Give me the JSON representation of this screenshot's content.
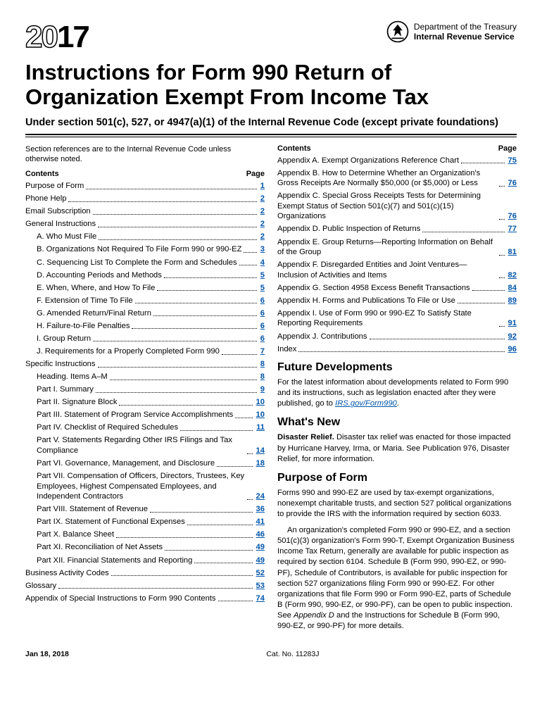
{
  "year": {
    "outline": "20",
    "solid": "17"
  },
  "dept": {
    "l1": "Department of the Treasury",
    "l2": "Internal Revenue Service"
  },
  "title": "Instructions for Form 990 Return of Organization Exempt From Income Tax",
  "subtitle": "Under section 501(c), 527, or 4947(a)(1) of the Internal Revenue Code (except private foundations)",
  "intro": "Section references are to the Internal Revenue Code unless otherwise noted.",
  "contents_label": "Contents",
  "page_label": "Page",
  "toc_left": [
    {
      "label": "Purpose of Form",
      "page": "1",
      "indent": 0
    },
    {
      "label": "Phone Help",
      "page": "2",
      "indent": 0
    },
    {
      "label": "Email Subscription",
      "page": "2",
      "indent": 0
    },
    {
      "label": "General Instructions",
      "page": "2",
      "indent": 0
    },
    {
      "label": "A. Who Must File",
      "page": "2",
      "indent": 1
    },
    {
      "label": "B. Organizations Not Required To File Form 990 or 990-EZ",
      "page": "3",
      "indent": 1
    },
    {
      "label": "C. Sequencing List To Complete the Form and Schedules",
      "page": "4",
      "indent": 1
    },
    {
      "label": "D. Accounting Periods and Methods",
      "page": "5",
      "indent": 1
    },
    {
      "label": "E. When, Where, and How To File",
      "page": "5",
      "indent": 1
    },
    {
      "label": "F. Extension of Time To File",
      "page": "6",
      "indent": 1
    },
    {
      "label": "G. Amended Return/Final Return",
      "page": "6",
      "indent": 1
    },
    {
      "label": "H. Failure-to-File Penalties",
      "page": "6",
      "indent": 1
    },
    {
      "label": "I. Group Return",
      "page": "6",
      "indent": 1
    },
    {
      "label": "J. Requirements for a Properly Completed Form 990",
      "page": "7",
      "indent": 1
    },
    {
      "label": "Specific Instructions",
      "page": "8",
      "indent": 0
    },
    {
      "label": "Heading. Items A–M",
      "page": "8",
      "indent": 1
    },
    {
      "label": "Part I. Summary",
      "page": "9",
      "indent": 1
    },
    {
      "label": "Part II. Signature Block",
      "page": "10",
      "indent": 1
    },
    {
      "label": "Part III. Statement of Program Service Accomplishments",
      "page": "10",
      "indent": 1
    },
    {
      "label": "Part IV. Checklist of Required Schedules",
      "page": "11",
      "indent": 1
    },
    {
      "label": "Part V. Statements Regarding Other IRS Filings and Tax Compliance",
      "page": "14",
      "indent": 1
    },
    {
      "label": "Part VI. Governance, Management, and Disclosure",
      "page": "18",
      "indent": 1
    },
    {
      "label": "Part VII. Compensation of Officers, Directors, Trustees, Key Employees, Highest Compensated Employees, and Independent Contractors",
      "page": "24",
      "indent": 1
    },
    {
      "label": "Part VIII. Statement of Revenue",
      "page": "36",
      "indent": 1
    },
    {
      "label": "Part IX. Statement of Functional Expenses",
      "page": "41",
      "indent": 1
    },
    {
      "label": "Part X. Balance Sheet",
      "page": "46",
      "indent": 1
    },
    {
      "label": "Part XI. Reconciliation of Net Assets",
      "page": "49",
      "indent": 1
    },
    {
      "label": "Part XII. Financial Statements and Reporting",
      "page": "49",
      "indent": 1
    },
    {
      "label": "Business Activity Codes",
      "page": "52",
      "indent": 0
    },
    {
      "label": "Glossary",
      "page": "53",
      "indent": 0
    },
    {
      "label": "Appendix of Special Instructions to Form 990 Contents",
      "page": "74",
      "indent": 0
    }
  ],
  "toc_right": [
    {
      "label": "Appendix A. Exempt Organizations Reference Chart",
      "page": "75",
      "indent": 0
    },
    {
      "label": "Appendix B. How to Determine Whether an Organization's Gross Receipts Are Normally $50,000 (or $5,000) or Less",
      "page": "76",
      "indent": 0
    },
    {
      "label": "Appendix C. Special Gross Receipts Tests for Determining Exempt Status of Section 501(c)(7) and 501(c)(15) Organizations",
      "page": "76",
      "indent": 0
    },
    {
      "label": "Appendix D. Public Inspection of Returns",
      "page": "77",
      "indent": 0
    },
    {
      "label": "Appendix E. Group Returns—Reporting Information on Behalf of the Group",
      "page": "81",
      "indent": 0
    },
    {
      "label": "Appendix F. Disregarded Entities and Joint Ventures—Inclusion of Activities and Items",
      "page": "82",
      "indent": 0
    },
    {
      "label": "Appendix G. Section 4958 Excess Benefit Transactions",
      "page": "84",
      "indent": 0
    },
    {
      "label": "Appendix H. Forms and Publications To File or Use",
      "page": "89",
      "indent": 0
    },
    {
      "label": "Appendix I. Use of Form 990 or 990-EZ To Satisfy State Reporting Requirements",
      "page": "91",
      "indent": 0
    },
    {
      "label": "Appendix J. Contributions",
      "page": "92",
      "indent": 0
    },
    {
      "label": "Index",
      "page": "96",
      "indent": 0
    }
  ],
  "future_h": "Future Developments",
  "future_p1": "For the latest information about developments related to Form 990 and its instructions, such as legislation enacted after they were published, go to ",
  "future_link": "IRS.gov/Form990",
  "future_p2": ".",
  "whatsnew_h": "What's New",
  "whatsnew_b": "Disaster Relief.",
  "whatsnew_p": " Disaster tax relief was enacted for those impacted by Hurricane Harvey, Irma, or Maria. See Publication 976, Disaster Relief, for more information.",
  "purpose_h": "Purpose of Form",
  "purpose_p1": "Forms 990 and 990-EZ are used by tax-exempt organizations, nonexempt charitable trusts, and section 527 political organizations to provide the IRS with the information required by section 6033.",
  "purpose_p2a": "An organization's completed Form 990 or 990-EZ, and a section 501(c)(3) organization's Form 990-T, Exempt Organization Business Income Tax Return, generally are available for public inspection as required by section 6104. Schedule B (Form 990, 990-EZ, or 990-PF), Schedule of Contributors, is available for public inspection for section 527 organizations filing Form 990 or 990-EZ. For other organizations that file Form 990 or Form 990-EZ, parts of Schedule B (Form 990, 990-EZ, or 990-PF), can be open to public inspection. See ",
  "purpose_p2i": "Appendix D",
  "purpose_p2b": " and the Instructions for Schedule B (Form 990, 990-EZ, or 990-PF) for more details.",
  "footer": {
    "date": "Jan 18, 2018",
    "cat": "Cat. No. 11283J"
  }
}
